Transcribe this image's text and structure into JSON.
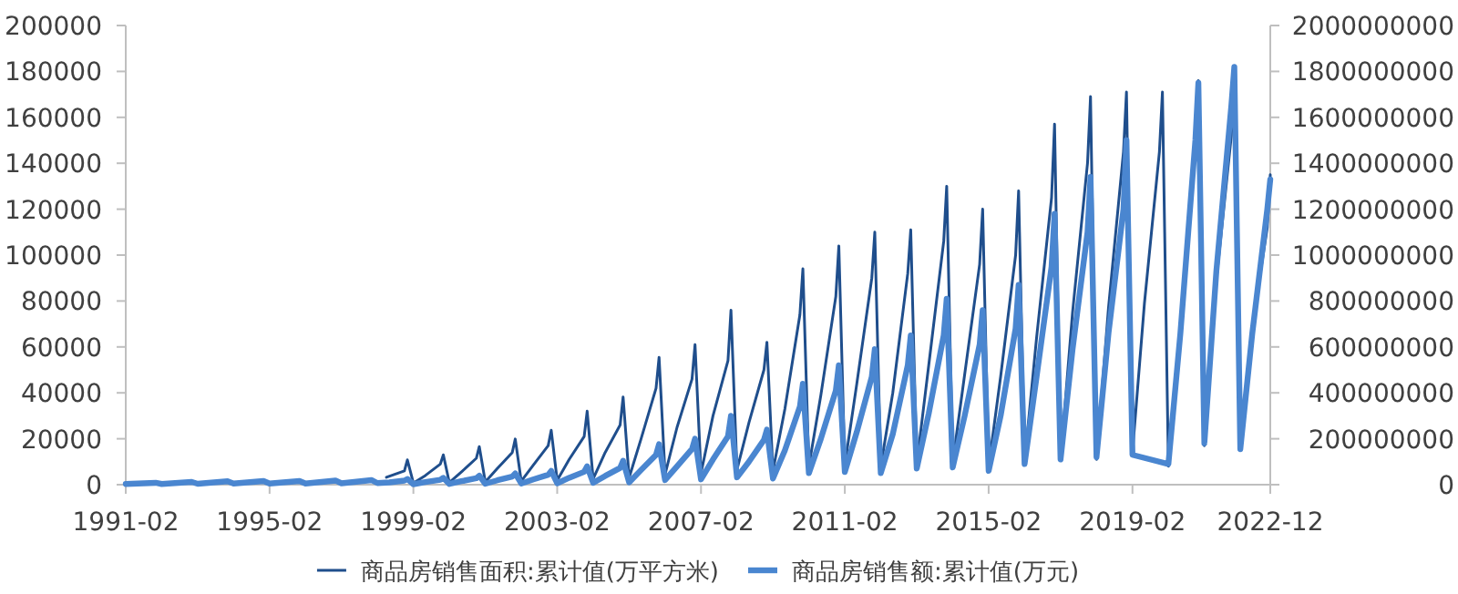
{
  "chart_data": {
    "type": "line",
    "xlim": [
      "1991-02",
      "2022-12"
    ],
    "xticks": [
      "1991-02",
      "1995-02",
      "1999-02",
      "2003-02",
      "2007-02",
      "2011-02",
      "2015-02",
      "2019-02",
      "2022-12"
    ],
    "ylim": [
      0,
      200000
    ],
    "yticks": [
      0,
      20000,
      40000,
      60000,
      80000,
      100000,
      120000,
      140000,
      160000,
      180000,
      200000
    ],
    "y2lim": [
      0,
      2000000000
    ],
    "y2ticks": [
      0,
      200000000,
      400000000,
      600000000,
      800000000,
      1000000000,
      1200000000,
      1400000000,
      1600000000,
      1800000000,
      2000000000
    ],
    "grid": false,
    "legend": "bottom",
    "marker": "none",
    "line_style": "solid",
    "series": [
      {
        "name": "商品房销售面积:累计值(万平方米)",
        "color": "#1f4e8c",
        "x": [
          "1998-05",
          "1998-11",
          "1998-12",
          "1999-02",
          "1999-06",
          "1999-11",
          "1999-12",
          "2000-02",
          "2000-06",
          "2000-11",
          "2000-12",
          "2001-02",
          "2001-06",
          "2001-11",
          "2001-12",
          "2002-02",
          "2002-06",
          "2002-11",
          "2002-12",
          "2003-02",
          "2003-06",
          "2003-11",
          "2003-12",
          "2004-02",
          "2004-06",
          "2004-11",
          "2004-12",
          "2005-02",
          "2005-06",
          "2005-11",
          "2005-12",
          "2006-02",
          "2006-06",
          "2006-11",
          "2006-12",
          "2007-02",
          "2007-06",
          "2007-11",
          "2007-12",
          "2008-02",
          "2008-06",
          "2008-11",
          "2008-12",
          "2009-02",
          "2009-06",
          "2009-11",
          "2009-12",
          "2010-02",
          "2010-06",
          "2010-11",
          "2010-12",
          "2011-02",
          "2011-06",
          "2011-11",
          "2011-12",
          "2012-02",
          "2012-06",
          "2012-11",
          "2012-12",
          "2013-02",
          "2013-06",
          "2013-11",
          "2013-12",
          "2014-02",
          "2014-06",
          "2014-11",
          "2014-12",
          "2015-02",
          "2015-06",
          "2015-11",
          "2015-12",
          "2016-02",
          "2016-06",
          "2016-11",
          "2016-12",
          "2017-02",
          "2017-06",
          "2017-11",
          "2017-12",
          "2018-02",
          "2018-06",
          "2018-11",
          "2018-12",
          "2019-02",
          "2019-06",
          "2019-11",
          "2019-12",
          "2020-02",
          "2020-06",
          "2020-11",
          "2020-12",
          "2021-02",
          "2021-06",
          "2021-11",
          "2021-12",
          "2022-02",
          "2022-06",
          "2022-11",
          "2022-12"
        ],
        "values": [
          3200,
          6000,
          10800,
          700,
          4000,
          9000,
          13000,
          900,
          5500,
          11500,
          16600,
          1200,
          7000,
          14000,
          19900,
          1500,
          8500,
          17000,
          23700,
          1900,
          11000,
          21000,
          32000,
          2500,
          14000,
          26000,
          38200,
          3000,
          20000,
          42000,
          55500,
          4500,
          25000,
          46000,
          61000,
          5000,
          30000,
          54000,
          76000,
          6500,
          27000,
          50000,
          62000,
          6000,
          33000,
          74000,
          94000,
          8000,
          39000,
          82000,
          104000,
          8500,
          44000,
          90000,
          110000,
          8000,
          40000,
          92000,
          111000,
          9000,
          52000,
          106000,
          130000,
          9500,
          48000,
          96000,
          120000,
          8000,
          47000,
          100000,
          128000,
          10000,
          64000,
          125000,
          157000,
          11000,
          75000,
          140000,
          169000,
          11000,
          77000,
          145000,
          171000,
          14000,
          79000,
          145000,
          171000,
          8000,
          69000,
          146000,
          176000,
          17000,
          89000,
          152000,
          179000,
          15000,
          69000,
          112000,
          135000
        ]
      },
      {
        "name": "商品房销售额:累计值(万元)",
        "color": "#4a86d0",
        "axis": "y2",
        "x": [
          "1991-02",
          "1991-12",
          "1992-02",
          "1992-12",
          "1993-02",
          "1993-12",
          "1994-02",
          "1994-12",
          "1995-02",
          "1995-12",
          "1996-02",
          "1996-12",
          "1997-02",
          "1997-12",
          "1998-02",
          "1998-06",
          "1998-11",
          "1998-12",
          "1999-02",
          "1999-06",
          "1999-11",
          "1999-12",
          "2000-02",
          "2000-06",
          "2000-11",
          "2000-12",
          "2001-02",
          "2001-06",
          "2001-11",
          "2001-12",
          "2002-02",
          "2002-06",
          "2002-11",
          "2002-12",
          "2003-02",
          "2003-06",
          "2003-11",
          "2003-12",
          "2004-02",
          "2004-06",
          "2004-11",
          "2004-12",
          "2005-02",
          "2005-06",
          "2005-11",
          "2005-12",
          "2006-02",
          "2006-06",
          "2006-11",
          "2006-12",
          "2007-02",
          "2007-06",
          "2007-11",
          "2007-12",
          "2008-02",
          "2008-06",
          "2008-11",
          "2008-12",
          "2009-02",
          "2009-06",
          "2009-11",
          "2009-12",
          "2010-02",
          "2010-06",
          "2010-11",
          "2010-12",
          "2011-02",
          "2011-06",
          "2011-11",
          "2011-12",
          "2012-02",
          "2012-06",
          "2012-11",
          "2012-12",
          "2013-02",
          "2013-06",
          "2013-11",
          "2013-12",
          "2014-02",
          "2014-06",
          "2014-11",
          "2014-12",
          "2015-02",
          "2015-06",
          "2015-11",
          "2015-12",
          "2016-02",
          "2016-06",
          "2016-11",
          "2016-12",
          "2017-02",
          "2017-06",
          "2017-11",
          "2017-12",
          "2018-02",
          "2018-06",
          "2018-11",
          "2018-12",
          "2019-02",
          "2020-02",
          "2020-06",
          "2020-11",
          "2020-12",
          "2021-02",
          "2021-06",
          "2021-11",
          "2021-12",
          "2022-02",
          "2022-06",
          "2022-11",
          "2022-12"
        ],
        "values": [
          3000000,
          8000000,
          3000000,
          12000000,
          4000000,
          15000000,
          5000000,
          16000000,
          5000000,
          16000000,
          5000000,
          18000000,
          6000000,
          20000000,
          7000000,
          10000000,
          18000000,
          25000000,
          2000000,
          11000000,
          21000000,
          30000000,
          3000000,
          15000000,
          28000000,
          39000000,
          4000000,
          19000000,
          35000000,
          49000000,
          5000000,
          23000000,
          43000000,
          60000000,
          6000000,
          30000000,
          56000000,
          80000000,
          8000000,
          38000000,
          73000000,
          104000000,
          10000000,
          64000000,
          130000000,
          176000000,
          20000000,
          80000000,
          155000000,
          200000000,
          23000000,
          110000000,
          210000000,
          300000000,
          32000000,
          100000000,
          195000000,
          240000000,
          27000000,
          150000000,
          340000000,
          440000000,
          50000000,
          200000000,
          410000000,
          520000000,
          55000000,
          230000000,
          470000000,
          590000000,
          50000000,
          220000000,
          520000000,
          650000000,
          70000000,
          310000000,
          650000000,
          810000000,
          75000000,
          300000000,
          610000000,
          760000000,
          60000000,
          300000000,
          680000000,
          870000000,
          90000000,
          470000000,
          950000000,
          1180000000,
          110000000,
          590000000,
          1100000000,
          1340000000,
          120000000,
          660000000,
          1200000000,
          1500000000,
          130000000,
          90000000,
          660000000,
          1500000000,
          1750000000,
          180000000,
          930000000,
          1650000000,
          1820000000,
          155000000,
          660000000,
          1200000000,
          1330000000
        ]
      }
    ]
  }
}
